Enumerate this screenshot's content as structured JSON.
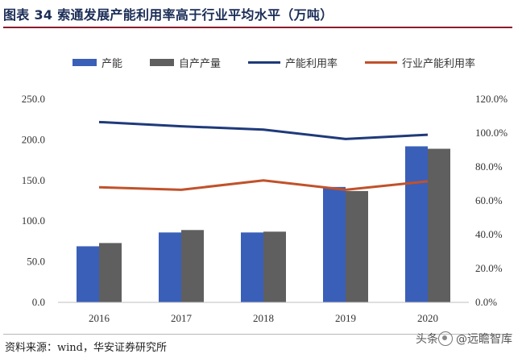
{
  "figure": {
    "title": "图表 34 索通发展产能利用率高于行业平均水平（万吨）",
    "source": "资料来源：wind，华安证券研究所",
    "watermark_prefix": "头条",
    "watermark": "@远瞻智库"
  },
  "chart_data": {
    "type": "bar",
    "categories": [
      "2016",
      "2017",
      "2018",
      "2019",
      "2020"
    ],
    "series": [
      {
        "name": "产能",
        "type": "bar",
        "axis": "left",
        "color": "#3a5fb8",
        "values": [
          69,
          86,
          86,
          142,
          192
        ]
      },
      {
        "name": "自产产量",
        "type": "bar",
        "axis": "left",
        "color": "#5f5f5f",
        "values": [
          73,
          89,
          87,
          137,
          189
        ]
      },
      {
        "name": "产能利用率",
        "type": "line",
        "axis": "right",
        "color": "#1f3a7a",
        "values": [
          106.5,
          104.0,
          102.0,
          96.5,
          99.0
        ]
      },
      {
        "name": "行业产能利用率",
        "type": "line",
        "axis": "right",
        "color": "#c0522b",
        "values": [
          68.0,
          66.5,
          72.0,
          66.5,
          71.5
        ]
      }
    ],
    "y_left": {
      "ticks": [
        "0.0",
        "50.0",
        "100.0",
        "150.0",
        "200.0",
        "250.0"
      ],
      "ylim": [
        0,
        250
      ]
    },
    "y_right": {
      "ticks": [
        "0.0%",
        "20.0%",
        "40.0%",
        "60.0%",
        "80.0%",
        "100.0%",
        "120.0%"
      ],
      "ylim": [
        0,
        120
      ]
    },
    "legend_position": "top",
    "grid": false
  }
}
